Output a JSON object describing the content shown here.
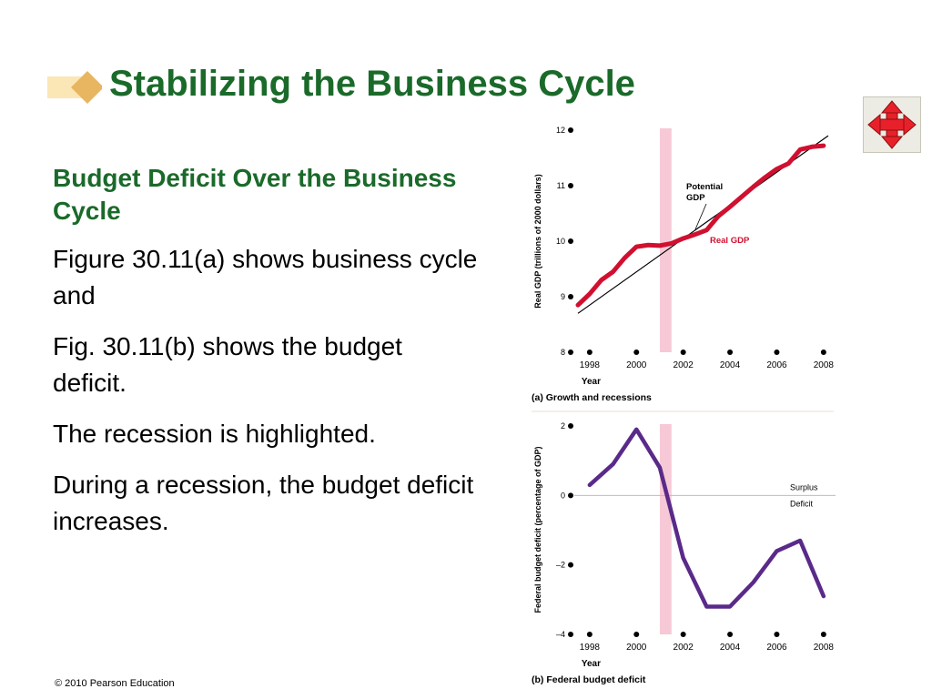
{
  "slide": {
    "title": "Stabilizing the Business Cycle",
    "subheading": "Budget Deficit Over the Business Cycle",
    "paragraphs": [
      "Figure 30.11(a) shows business cycle and",
      "Fig. 30.11(b) shows the budget deficit.",
      "The recession is highlighted.",
      "During a recession, the budget deficit increases."
    ],
    "footer": "© 2010 Pearson Education",
    "nav_icon": "four-way-arrows-icon",
    "colors": {
      "title": "#1a6a2a",
      "real_gdp": "#d01030",
      "deficit": "#5a2a8a",
      "recession": "#f7c9d6"
    }
  },
  "chart_data": [
    {
      "type": "line",
      "caption": "(a) Growth and recessions",
      "ylabel": "Real GDP (trillions of 2000 dollars)",
      "xlabel": "Year",
      "xlim": [
        1997.5,
        2008.2
      ],
      "ylim": [
        8,
        12
      ],
      "x_ticks": [
        "1998",
        "2000",
        "2002",
        "2004",
        "2006",
        "2008"
      ],
      "y_ticks": [
        "8",
        "9",
        "10",
        "11",
        "12"
      ],
      "recession": [
        2001.0,
        2001.5
      ],
      "series": [
        {
          "name": "Real GDP",
          "x": [
            1997.5,
            1998.0,
            1998.5,
            1999.0,
            1999.5,
            2000.0,
            2000.5,
            2001.0,
            2001.5,
            2002.0,
            2002.5,
            2003.0,
            2003.5,
            2004.0,
            2004.5,
            2005.0,
            2005.5,
            2006.0,
            2006.5,
            2007.0,
            2007.5,
            2008.0
          ],
          "y": [
            8.85,
            9.05,
            9.3,
            9.45,
            9.7,
            9.9,
            9.93,
            9.92,
            9.96,
            10.05,
            10.12,
            10.2,
            10.45,
            10.62,
            10.8,
            10.98,
            11.15,
            11.3,
            11.4,
            11.65,
            11.7,
            11.72
          ],
          "color": "#d01030"
        },
        {
          "name": "Potential GDP",
          "x": [
            1997.5,
            2008.2
          ],
          "y": [
            8.7,
            11.9
          ],
          "color": "#000000"
        }
      ]
    },
    {
      "type": "line",
      "caption": "(b) Federal budget deficit",
      "ylabel": "Federal budget deficit (percentage of GDP)",
      "xlabel": "Year",
      "xlim": [
        1997.5,
        2008.2
      ],
      "ylim": [
        -4,
        2
      ],
      "x_ticks": [
        "1998",
        "2000",
        "2002",
        "2004",
        "2006",
        "2008"
      ],
      "y_ticks": [
        "–4",
        "–2",
        "0",
        "2"
      ],
      "recession": [
        2001.0,
        2001.5
      ],
      "zero_labels": {
        "above": "Surplus",
        "below": "Deficit"
      },
      "series": [
        {
          "name": "Budget balance",
          "x": [
            1998,
            1999,
            2000,
            2001,
            2002,
            2003,
            2004,
            2005,
            2006,
            2007,
            2008
          ],
          "y": [
            0.3,
            0.9,
            1.9,
            0.8,
            -1.8,
            -3.2,
            -3.2,
            -2.5,
            -1.6,
            -1.3,
            -2.9
          ],
          "color": "#5a2a8a"
        }
      ]
    }
  ]
}
